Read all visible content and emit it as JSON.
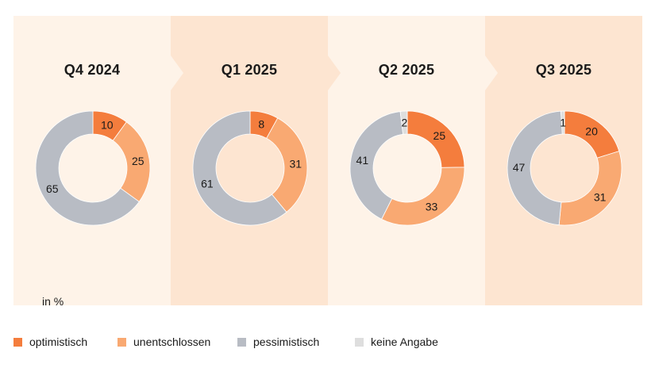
{
  "unit_note": "in %",
  "colors": {
    "optimistisch": "#f47d3d",
    "unentschlossen": "#f9a972",
    "pessimistisch": "#b8bcc4",
    "keine_angabe": "#dedede"
  },
  "legend": [
    {
      "label": "optimistisch",
      "color_key": "optimistisch"
    },
    {
      "label": "unentschlossen",
      "color_key": "unentschlossen"
    },
    {
      "label": "pessimistisch",
      "color_key": "pessimistisch"
    },
    {
      "label": "keine Angabe",
      "color_key": "keine_angabe"
    }
  ],
  "chart_data": [
    {
      "type": "pie",
      "title": "Q4 2024",
      "categories": [
        "optimistisch",
        "unentschlossen",
        "pessimistisch",
        "keine Angabe"
      ],
      "values": [
        10,
        25,
        65,
        0
      ]
    },
    {
      "type": "pie",
      "title": "Q1 2025",
      "categories": [
        "optimistisch",
        "unentschlossen",
        "pessimistisch",
        "keine Angabe"
      ],
      "values": [
        8,
        31,
        61,
        0
      ]
    },
    {
      "type": "pie",
      "title": "Q2 2025",
      "categories": [
        "optimistisch",
        "unentschlossen",
        "pessimistisch",
        "keine Angabe"
      ],
      "values": [
        25,
        33,
        41,
        2
      ]
    },
    {
      "type": "pie",
      "title": "Q3 2025",
      "categories": [
        "optimistisch",
        "unentschlossen",
        "pessimistisch",
        "keine Angabe"
      ],
      "values": [
        20,
        31,
        47,
        1
      ]
    }
  ]
}
